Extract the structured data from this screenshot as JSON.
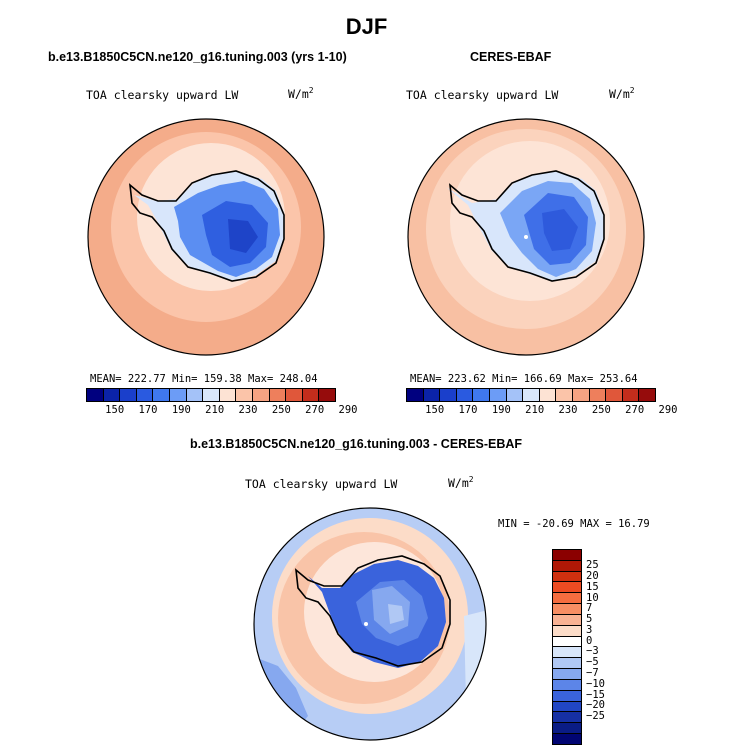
{
  "title": "DJF",
  "panels": {
    "model": {
      "title": "b.e13.B1850C5CN.ne120_g16.tuning.003 (yrs 1-10)",
      "variable": "TOA clearsky upward LW",
      "units_base": "W/m",
      "units_exp": "2",
      "stats": "MEAN= 222.77  Min= 159.38  Max= 248.04"
    },
    "obs": {
      "title": "CERES-EBAF",
      "variable": "TOA clearsky upward LW",
      "units_base": "W/m",
      "units_exp": "2",
      "stats": "MEAN= 223.62  Min= 166.69  Max= 253.64"
    },
    "diff": {
      "title": "b.e13.B1850C5CN.ne120_g16.tuning.003 - CERES-EBAF",
      "variable": "TOA clearsky upward LW",
      "units_base": "W/m",
      "units_exp": "2",
      "stats": "MIN = -20.69 MAX =  16.79"
    }
  },
  "colorbars": {
    "absolute": {
      "colors": [
        "#00007f",
        "#0b23a8",
        "#1a3fcb",
        "#2a5ae0",
        "#3f78ee",
        "#6c9cf6",
        "#a4c2f8",
        "#d9e7fb",
        "#fde3d4",
        "#fbc4a9",
        "#f6a382",
        "#ee7f5c",
        "#e0573a",
        "#c32d1c",
        "#960c0c"
      ],
      "labels": [
        "150",
        "170",
        "190",
        "210",
        "230",
        "250",
        "270",
        "290"
      ]
    },
    "difference": {
      "colors": [
        "#8b0000",
        "#b01806",
        "#d0300f",
        "#ec4b22",
        "#f56d3f",
        "#f88e63",
        "#f9b293",
        "#fcdcc8",
        "#ffffff",
        "#d8e6fa",
        "#b0c8f4",
        "#86a8ef",
        "#5c85e8",
        "#3a63dc",
        "#2146c4",
        "#1630a4",
        "#0a1c85",
        "#010572"
      ],
      "labels": [
        "25",
        "20",
        "15",
        "10",
        "7",
        "5",
        "3",
        "0",
        "−3",
        "−5",
        "−7",
        "−10",
        "−15",
        "−20",
        "−25"
      ]
    }
  }
}
